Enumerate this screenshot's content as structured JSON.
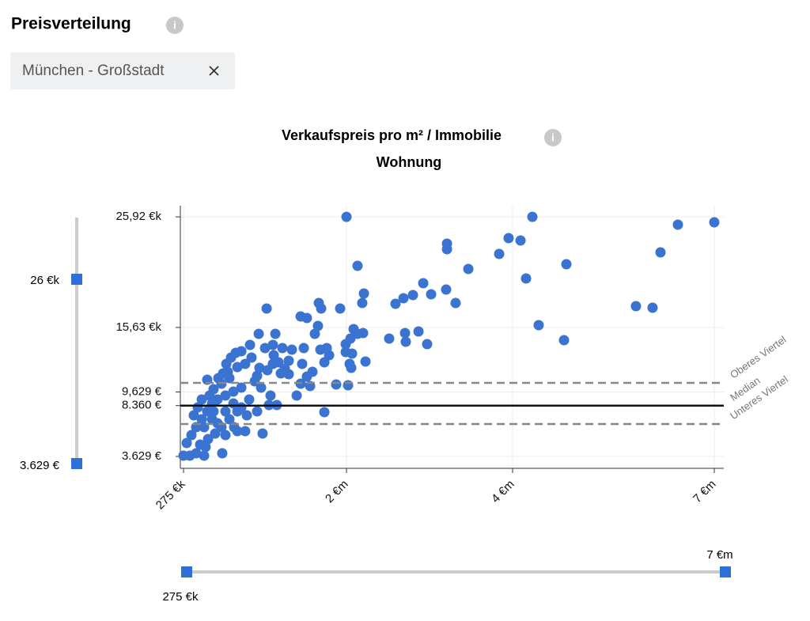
{
  "header": {
    "title": "Preisverteilung",
    "filter_chip": "München - Großstadt"
  },
  "sliders": {
    "y": {
      "max_label": "26 €k",
      "min_label": "3.629 €"
    },
    "x": {
      "min_label": "275 €k",
      "max_label": "7 €m"
    }
  },
  "chart_data": {
    "type": "scatter",
    "title": "Verkaufspreis pro m² / Immobilie",
    "subtitle": "Wohnung",
    "color": "#3b73d0",
    "grid": true,
    "xlim": [
      242000,
      7141000
    ],
    "xticks": [
      {
        "value": 275000,
        "label": "275 €k"
      },
      {
        "value": 2000000,
        "label": "2 €m"
      },
      {
        "value": 4000000,
        "label": "4 €m"
      },
      {
        "value": 7000000,
        "label": "7 €m"
      }
    ],
    "ylim": [
      2525,
      26960
    ],
    "yticks": [
      {
        "value": 3629,
        "label": "3.629 €"
      },
      {
        "value": 8360,
        "label": "8.360 €"
      },
      {
        "value": 9629,
        "label": "9,629 €"
      },
      {
        "value": 15630,
        "label": "15,63 €k"
      },
      {
        "value": 25920,
        "label": "25,92 €k"
      }
    ],
    "reference_lines": [
      {
        "label": "Oberes Viertel",
        "value": 10470,
        "style": "dashed"
      },
      {
        "label": "Median",
        "value": 8360,
        "style": "solid"
      },
      {
        "label": "Unteres Viertel",
        "value": 6650,
        "style": "dashed"
      }
    ],
    "x": [
      2000000,
      4294000,
      7000000,
      6459000,
      6200000,
      3952000,
      4118000,
      3838000,
      4800000,
      4200000,
      3467000,
      3210000,
      3210000,
      2924000,
      3200000,
      3019000,
      3314000,
      2686000,
      2800000,
      2590000,
      2133000,
      2210000,
      2190000,
      2200000,
      2514000,
      2705000,
      2867000,
      2714000,
      2971000,
      4388000,
      4765000,
      5835000,
      6082000,
      2038000,
      2229000,
      2019000,
      1891000,
      1766000,
      2067000,
      1992000,
      2048000,
      1992000,
      2057000,
      2133000,
      2086000,
      1816000,
      1791000,
      1933000,
      1732000,
      1707000,
      1581000,
      1515000,
      1698000,
      1665000,
      1724000,
      1766000,
      1640000,
      1581000,
      1515000,
      1615000,
      1473000,
      1389000,
      1531000,
      1548000,
      1422000,
      1389000,
      1280000,
      1155000,
      1247000,
      1071000,
      1221000,
      1322000,
      1138000,
      1230000,
      1221000,
      1305000,
      1347000,
      1163000,
      1079000,
      1054000,
      979000,
      887000,
      828000,
      778000,
      728000,
      694000,
      644000,
      744000,
      845000,
      928000,
      995000,
      1029000,
      1096000,
      1196000,
      1263000,
      1179000,
      1112000,
      928000,
      811000,
      1054000,
      970000,
      887000,
      803000,
      719000,
      635000,
      577000,
      526000,
      468000,
      409000,
      359000,
      309000,
      275000,
      342000,
      409000,
      493000,
      685000,
      451000,
      535000,
      610000,
      677000,
      761000,
      845000,
      577000,
      493000,
      635000,
      719000,
      803000,
      887000,
      945000,
      593000,
      677000,
      526000,
      761000,
      551000,
      426000,
      384000,
      845000,
      719000,
      509000,
      593000,
      468000
    ],
    "values": [
      25920,
      25920,
      25415,
      25194,
      22618,
      23942,
      23722,
      22471,
      21514,
      20189,
      21072,
      23428,
      22912,
      19747,
      19159,
      18717,
      17907,
      18349,
      18643,
      17834,
      21366,
      18791,
      17907,
      15111,
      14596,
      15111,
      15258,
      14301,
      14080,
      15847,
      14448,
      17613,
      17466,
      12240,
      12461,
      10253,
      10327,
      7751,
      13197,
      13344,
      14596,
      14080,
      11872,
      15037,
      15479,
      13050,
      13712,
      17392,
      17392,
      17907,
      16509,
      16656,
      15773,
      15037,
      13565,
      12387,
      11504,
      11063,
      10400,
      10179,
      9296,
      11283,
      12240,
      13712,
      13565,
      12534,
      12387,
      17392,
      15037,
      15037,
      14006,
      13712,
      13712,
      13050,
      12240,
      11357,
      11798,
      11651,
      11872,
      11136,
      14006,
      13418,
      13271,
      12829,
      12240,
      11357,
      10915,
      11504,
      11946,
      12240,
      12829,
      10621,
      10032,
      9296,
      8413,
      8413,
      5763,
      5984,
      6352,
      7824,
      8928,
      10032,
      9664,
      9296,
      8928,
      8560,
      7824,
      7088,
      6352,
      5616,
      4880,
      3703,
      3703,
      3923,
      3703,
      3923,
      4733,
      5248,
      5763,
      6352,
      7088,
      7824,
      7088,
      6352,
      6720,
      7824,
      8560,
      8192,
      7456,
      9885,
      10400,
      10768,
      10915,
      9296,
      8192,
      7456,
      5984,
      5616,
      4512,
      7824,
      8928
    ]
  }
}
